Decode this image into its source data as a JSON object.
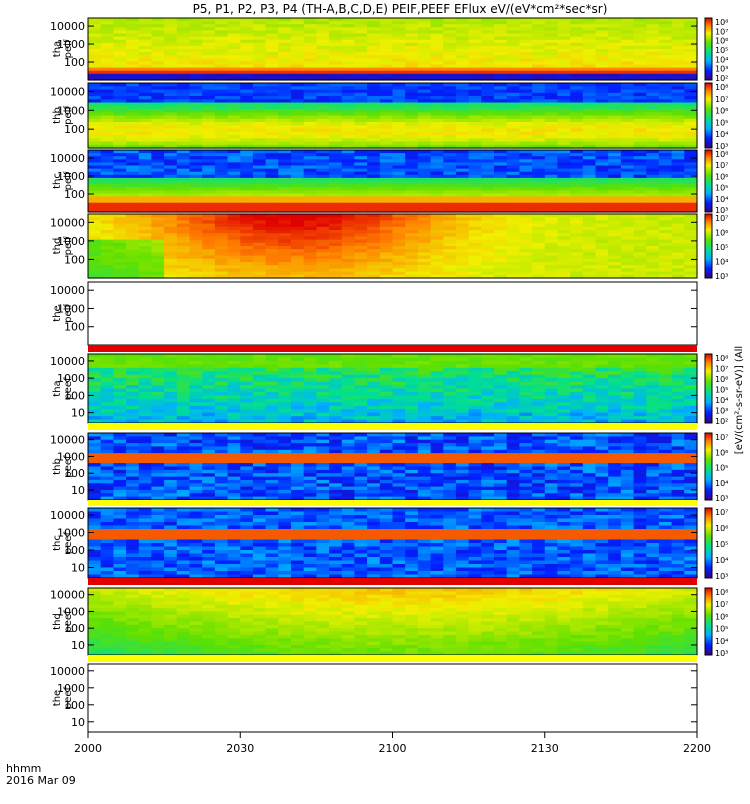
{
  "chart_data": {
    "type": "heatmap",
    "title": "P5, P1, P2, P3, P4 (TH-A,B,C,D,E) PEIF,PEEF EFlux eV/(eV*cm²*sec*sr)",
    "x_ticks": [
      "2000",
      "2030",
      "2100",
      "2130",
      "2200"
    ],
    "x_corner_labels": [
      "hhmm",
      "2016 Mar 09"
    ],
    "x_range": [
      "20:00",
      "22:00"
    ],
    "y_scale": "log",
    "panels": [
      {
        "id": "tha-peif",
        "label": [
          "tha",
          "peif"
        ],
        "ylabels": [
          "10000",
          "1000",
          "100"
        ],
        "colorbar": true,
        "cbticks": [
          "10⁸",
          "10⁷",
          "10⁶",
          "10⁵",
          "10⁴",
          "10³",
          "10²"
        ],
        "cbtitle": "[eV/(cm²-s-sr-eV)] (All",
        "pattern": "ion-yellow"
      },
      {
        "id": "thb-peif",
        "label": [
          "thb",
          "peif"
        ],
        "ylabels": [
          "10000",
          "1000",
          "100"
        ],
        "colorbar": true,
        "cbticks": [
          "10⁸",
          "10⁷",
          "10⁶",
          "10⁵",
          "10⁴",
          "10³"
        ],
        "cbtitle": "[eV/(cm²-s-sr-eV)] (All",
        "pattern": "ion-green"
      },
      {
        "id": "thc-peif",
        "label": [
          "thc",
          "peif"
        ],
        "ylabels": [
          "10000",
          "1000",
          "100"
        ],
        "colorbar": true,
        "cbticks": [
          "10⁸",
          "10⁷",
          "10⁶",
          "10⁵",
          "10⁴",
          "10³"
        ],
        "cbtitle": "[eV/(cm²-s-sr-eV)] (All",
        "pattern": "ion-blue"
      },
      {
        "id": "thd-peif",
        "label": [
          "thd",
          "peif"
        ],
        "ylabels": [
          "10000",
          "1000",
          "100"
        ],
        "colorbar": true,
        "cbticks": [
          "10⁷",
          "10⁶",
          "10⁵",
          "10⁴",
          "10³"
        ],
        "cbtitle": "[eV/(cm²-s-sr-eV)] (All",
        "pattern": "ion-orange"
      },
      {
        "id": "the-peif",
        "label": [
          "the",
          "peif"
        ],
        "ylabels": [
          "10000",
          "1000",
          "100"
        ],
        "colorbar": false,
        "pattern": "empty"
      },
      {
        "id": "tha-peef",
        "label": [
          "tha",
          "peef"
        ],
        "ylabels": [
          "10000",
          "1000",
          "100",
          "10"
        ],
        "colorbar": true,
        "cbticks": [
          "10⁸",
          "10⁷",
          "10⁶",
          "10⁵",
          "10⁴",
          "10³",
          "10²"
        ],
        "cbtitle": "[eV/(cm²-s-sr-eV)] (All",
        "pattern": "elec-cyan"
      },
      {
        "id": "thb-peef",
        "label": [
          "thb",
          "peef"
        ],
        "ylabels": [
          "10000",
          "1000",
          "100",
          "10"
        ],
        "colorbar": true,
        "cbticks": [
          "10⁷",
          "10⁶",
          "10⁵",
          "10⁴",
          "10³"
        ],
        "cbtitle": "[eV/(cm²-s-sr-eV)] (All",
        "pattern": "elec-blue"
      },
      {
        "id": "thc-peef",
        "label": [
          "thc",
          "peef"
        ],
        "ylabels": [
          "10000",
          "1000",
          "100",
          "10"
        ],
        "colorbar": true,
        "cbticks": [
          "10⁷",
          "10⁶",
          "10⁵",
          "10⁴",
          "10³"
        ],
        "cbtitle": "[eV/(cm²-s-sr-eV)] (All",
        "pattern": "elec-blue2"
      },
      {
        "id": "thd-peef",
        "label": [
          "thd",
          "peef"
        ],
        "ylabels": [
          "10000",
          "1000",
          "100",
          "10"
        ],
        "colorbar": true,
        "cbticks": [
          "10⁸",
          "10⁷",
          "10⁶",
          "10⁵",
          "10⁴",
          "10³"
        ],
        "cbtitle": "[eV/(cm²-s-sr-eV)] (All",
        "pattern": "elec-green"
      },
      {
        "id": "the-peef",
        "label": [
          "the",
          "peef"
        ],
        "ylabels": [
          "10000",
          "1000",
          "100",
          "10"
        ],
        "colorbar": false,
        "pattern": "empty"
      }
    ]
  }
}
